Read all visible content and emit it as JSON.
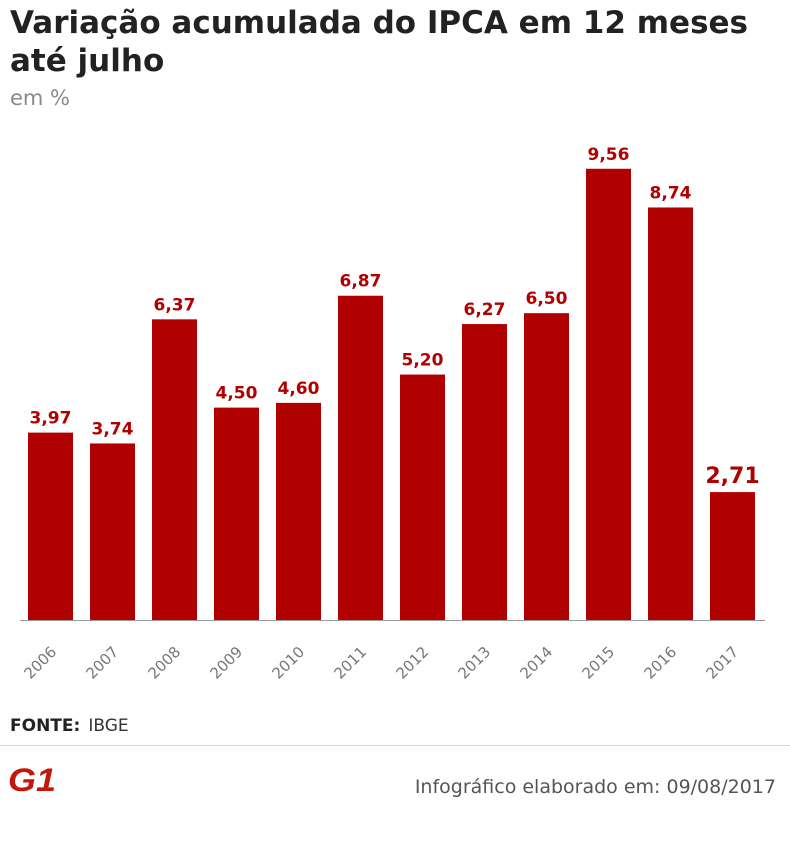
{
  "header": {
    "title": "Variação acumulada do IPCA em 12 meses até julho",
    "subtitle": "em %"
  },
  "chart_data": {
    "type": "bar",
    "title": "Variação acumulada do IPCA em 12 meses até julho",
    "subtitle": "em %",
    "xlabel": "",
    "ylabel": "",
    "categories": [
      "2006",
      "2007",
      "2008",
      "2009",
      "2010",
      "2011",
      "2012",
      "2013",
      "2014",
      "2015",
      "2016",
      "2017"
    ],
    "values": [
      3.97,
      3.74,
      6.37,
      4.5,
      4.6,
      6.87,
      5.2,
      6.27,
      6.5,
      9.56,
      8.74,
      2.71
    ],
    "value_labels": [
      "3,97",
      "3,74",
      "6,37",
      "4,50",
      "4,60",
      "6,87",
      "5,20",
      "6,27",
      "6,50",
      "9,56",
      "8,74",
      "2,71"
    ],
    "ylim": [
      0,
      10
    ],
    "grid": false,
    "highlight_index": 11,
    "colors": {
      "bar": "#b10000",
      "label": "#b10000",
      "tick": "#777777",
      "axis": "#999999"
    }
  },
  "footer": {
    "source_label": "FONTE:",
    "source_value": "IBGE",
    "logo_text": "G1",
    "logo_color": "#c4170c",
    "credit": "Infográfico elaborado em: 09/08/2017"
  }
}
